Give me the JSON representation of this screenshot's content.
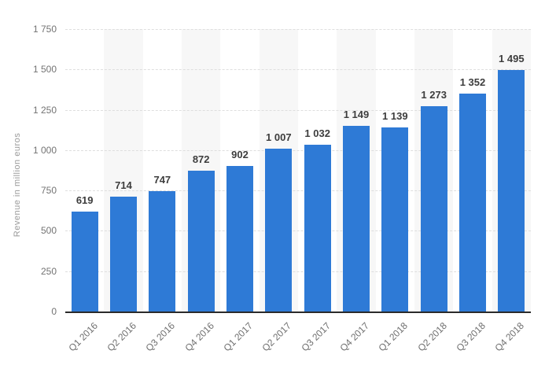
{
  "chart_data": {
    "type": "bar",
    "title": "",
    "xlabel": "",
    "ylabel": "Revenue in million euros",
    "categories": [
      "Q1 2016",
      "Q2 2016",
      "Q3 2016",
      "Q4 2016",
      "Q1 2017",
      "Q2 2017",
      "Q3 2017",
      "Q4 2017",
      "Q1 2018",
      "Q2 2018",
      "Q3 2018",
      "Q4 2018"
    ],
    "values": [
      619,
      714,
      747,
      872,
      902,
      1007,
      1032,
      1149,
      1139,
      1273,
      1352,
      1495
    ],
    "value_labels": [
      "619",
      "714",
      "747",
      "872",
      "902",
      "1 007",
      "1 032",
      "1 149",
      "1 139",
      "1 273",
      "1 352",
      "1 495"
    ],
    "ylim": [
      0,
      1750
    ],
    "yticks": [
      {
        "value": 0,
        "label": "0"
      },
      {
        "value": 250,
        "label": "250"
      },
      {
        "value": 500,
        "label": "500"
      },
      {
        "value": 750,
        "label": "750"
      },
      {
        "value": 1000,
        "label": "1 000"
      },
      {
        "value": 1250,
        "label": "1 250"
      },
      {
        "value": 1500,
        "label": "1 500"
      },
      {
        "value": 1750,
        "label": "1 750"
      }
    ],
    "grid": "horizontal dashed gridlines, alternating vertical column shading on even columns",
    "legend": "none",
    "colors": {
      "bar": "#2e7ad6",
      "band": "#f7f7f7",
      "grid": "#dedede",
      "axis_line": "#2b2b2b",
      "value_label": "#3d3d3d",
      "tick_label": "#6e6e6e",
      "y_tick_label": "#737373",
      "axis_title": "#9a9a9a",
      "background": "#ffffff"
    }
  }
}
